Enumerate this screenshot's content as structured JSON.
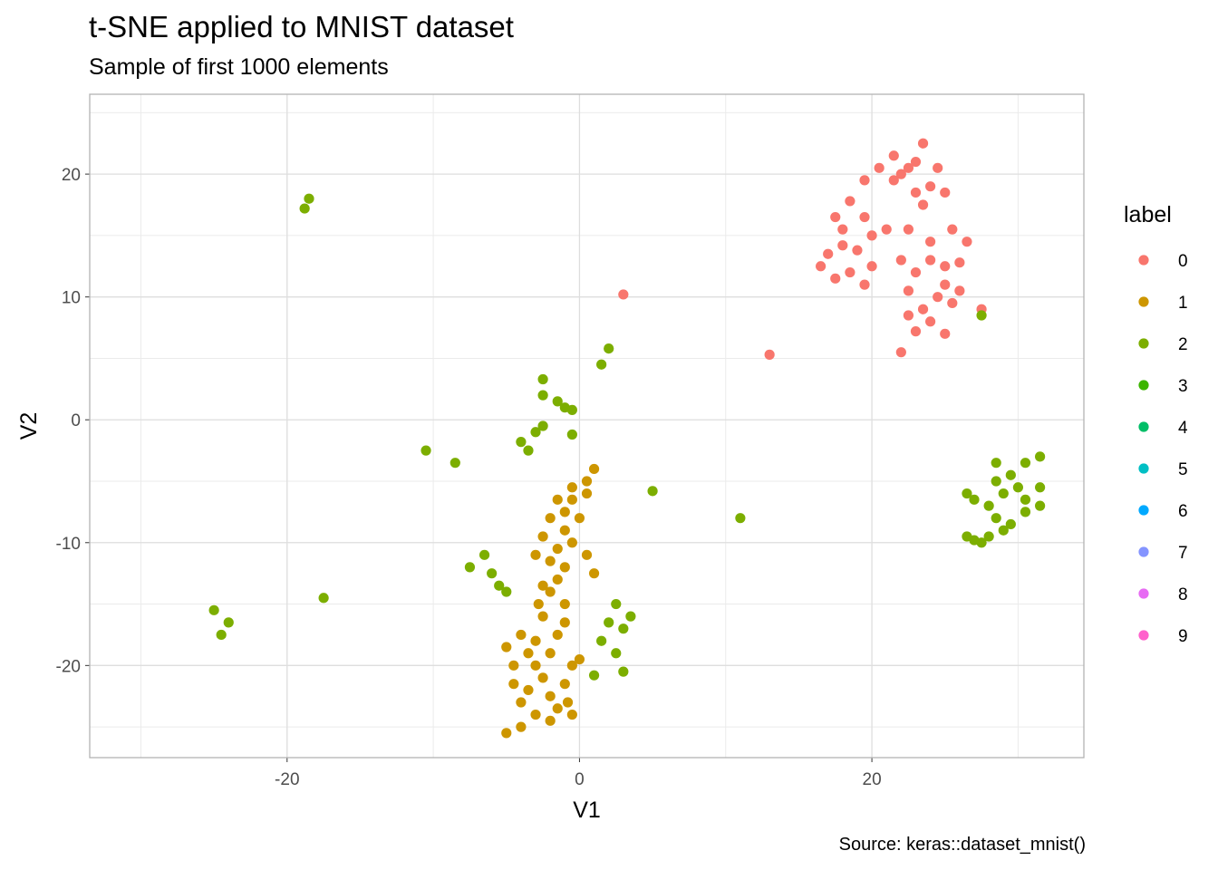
{
  "title": "t-SNE applied to MNIST dataset",
  "subtitle": "Sample of first 1000 elements",
  "caption": "Source: keras::dataset_mnist()",
  "chart_data": {
    "type": "scatter",
    "xlabel": "V1",
    "ylabel": "V2",
    "xlim": [
      -33.5,
      34.5
    ],
    "ylim": [
      -27.5,
      26.5
    ],
    "x_ticks": [
      -20,
      0,
      20
    ],
    "y_ticks": [
      -20,
      -10,
      0,
      10,
      20
    ],
    "x_tick_labels": [
      "-20",
      "0",
      "20"
    ],
    "y_tick_labels": [
      "-20",
      "-10",
      "0",
      "10",
      "20"
    ],
    "grid": true,
    "legend": {
      "title": "label",
      "position": "right"
    },
    "series": [
      {
        "name": "0",
        "color": "#F8766D",
        "points": [
          [
            23.5,
            22.5
          ],
          [
            23.0,
            21.0
          ],
          [
            22.5,
            20.5
          ],
          [
            21.5,
            19.5
          ],
          [
            24.0,
            19.0
          ],
          [
            23.0,
            18.5
          ],
          [
            22.0,
            20.0
          ],
          [
            24.5,
            20.5
          ],
          [
            20.5,
            20.5
          ],
          [
            25.0,
            18.5
          ],
          [
            23.5,
            17.5
          ],
          [
            18.5,
            17.8
          ],
          [
            19.5,
            16.5
          ],
          [
            17.5,
            16.5
          ],
          [
            18.0,
            15.5
          ],
          [
            20.0,
            15.0
          ],
          [
            21.0,
            15.5
          ],
          [
            22.5,
            15.5
          ],
          [
            24.0,
            14.5
          ],
          [
            25.5,
            15.5
          ],
          [
            26.5,
            14.5
          ],
          [
            24.0,
            13.0
          ],
          [
            25.0,
            12.5
          ],
          [
            26.0,
            12.8
          ],
          [
            23.0,
            12.0
          ],
          [
            22.0,
            13.0
          ],
          [
            19.0,
            13.8
          ],
          [
            18.0,
            14.2
          ],
          [
            17.0,
            13.5
          ],
          [
            16.5,
            12.5
          ],
          [
            17.5,
            11.5
          ],
          [
            18.5,
            12.0
          ],
          [
            19.5,
            11.0
          ],
          [
            20.0,
            12.5
          ],
          [
            25.0,
            11.0
          ],
          [
            26.0,
            10.5
          ],
          [
            24.5,
            10.0
          ],
          [
            23.5,
            9.0
          ],
          [
            22.5,
            8.5
          ],
          [
            24.0,
            8.0
          ],
          [
            25.0,
            7.0
          ],
          [
            23.0,
            7.2
          ],
          [
            22.0,
            5.5
          ],
          [
            22.5,
            10.5
          ],
          [
            25.5,
            9.5
          ],
          [
            27.5,
            9.0
          ],
          [
            13.0,
            5.3
          ],
          [
            3.0,
            10.2
          ],
          [
            19.5,
            19.5
          ],
          [
            21.5,
            21.5
          ]
        ]
      },
      {
        "name": "1",
        "color": "#CD9600",
        "points": [
          [
            1.0,
            -4.0
          ],
          [
            0.5,
            -5.0
          ],
          [
            -0.5,
            -5.5
          ],
          [
            -1.5,
            -6.5
          ],
          [
            -1.0,
            -7.5
          ],
          [
            -2.0,
            -8.0
          ],
          [
            -1.0,
            -9.0
          ],
          [
            -0.5,
            -10.0
          ],
          [
            -1.5,
            -10.5
          ],
          [
            -2.5,
            -9.5
          ],
          [
            -2.0,
            -11.5
          ],
          [
            -1.0,
            -12.0
          ],
          [
            -1.5,
            -13.0
          ],
          [
            -2.0,
            -14.0
          ],
          [
            -1.0,
            -15.0
          ],
          [
            -2.5,
            -16.0
          ],
          [
            -1.5,
            -17.5
          ],
          [
            -3.0,
            -18.0
          ],
          [
            -2.0,
            -19.0
          ],
          [
            -3.0,
            -20.0
          ],
          [
            -2.5,
            -21.0
          ],
          [
            -3.5,
            -22.0
          ],
          [
            -2.0,
            -22.5
          ],
          [
            -4.0,
            -23.0
          ],
          [
            -3.0,
            -24.0
          ],
          [
            -4.0,
            -25.0
          ],
          [
            -1.0,
            -21.5
          ],
          [
            -0.5,
            -20.0
          ],
          [
            0.0,
            -19.5
          ],
          [
            -1.5,
            -23.5
          ],
          [
            -0.5,
            -24.0
          ],
          [
            -5.0,
            -25.5
          ],
          [
            -4.5,
            -20.0
          ],
          [
            -5.0,
            -18.5
          ],
          [
            -4.0,
            -17.5
          ],
          [
            0.0,
            -8.0
          ],
          [
            0.5,
            -11.0
          ],
          [
            1.0,
            -12.5
          ],
          [
            -0.5,
            -6.5
          ],
          [
            0.5,
            -6.0
          ],
          [
            -3.0,
            -11.0
          ],
          [
            -2.5,
            -13.5
          ],
          [
            -1.0,
            -16.5
          ],
          [
            -2.0,
            -24.5
          ],
          [
            -4.5,
            -21.5
          ],
          [
            -3.5,
            -19.0
          ],
          [
            -0.8,
            -23.0
          ],
          [
            -2.8,
            -15.0
          ]
        ]
      },
      {
        "name": "2",
        "color": "#7CAE00",
        "points": [
          [
            -18.5,
            18.0
          ],
          [
            -18.8,
            17.2
          ],
          [
            -2.5,
            3.3
          ],
          [
            -2.5,
            2.0
          ],
          [
            -1.5,
            1.5
          ],
          [
            -1.0,
            1.0
          ],
          [
            -0.5,
            0.8
          ],
          [
            -2.5,
            -0.5
          ],
          [
            -3.0,
            -1.0
          ],
          [
            -0.5,
            -1.2
          ],
          [
            -4.0,
            -1.8
          ],
          [
            -3.5,
            -2.5
          ],
          [
            -10.5,
            -2.5
          ],
          [
            -8.5,
            -3.5
          ],
          [
            5.0,
            -5.8
          ],
          [
            -6.5,
            -11.0
          ],
          [
            -6.0,
            -12.5
          ],
          [
            -5.5,
            -13.5
          ],
          [
            -7.5,
            -12.0
          ],
          [
            -5.0,
            -14.0
          ],
          [
            2.5,
            -15.0
          ],
          [
            3.0,
            -17.0
          ],
          [
            2.0,
            -16.5
          ],
          [
            3.5,
            -16.0
          ],
          [
            1.5,
            -18.0
          ],
          [
            2.5,
            -19.0
          ],
          [
            3.0,
            -20.5
          ],
          [
            1.0,
            -20.8
          ],
          [
            11.0,
            -8.0
          ],
          [
            -17.5,
            -14.5
          ],
          [
            -24.0,
            -16.5
          ],
          [
            -24.5,
            -17.5
          ],
          [
            -25.0,
            -15.5
          ],
          [
            28.5,
            -3.5
          ],
          [
            29.5,
            -4.5
          ],
          [
            30.5,
            -3.5
          ],
          [
            31.5,
            -3.0
          ],
          [
            30.0,
            -5.5
          ],
          [
            29.0,
            -6.0
          ],
          [
            28.0,
            -7.0
          ],
          [
            27.0,
            -6.5
          ],
          [
            26.5,
            -6.0
          ],
          [
            28.5,
            -8.0
          ],
          [
            29.5,
            -8.5
          ],
          [
            30.5,
            -7.5
          ],
          [
            31.5,
            -7.0
          ],
          [
            28.0,
            -9.5
          ],
          [
            27.0,
            -9.8
          ],
          [
            26.5,
            -9.5
          ],
          [
            27.5,
            -10.0
          ],
          [
            29.0,
            -9.0
          ],
          [
            31.5,
            -5.5
          ],
          [
            30.5,
            -6.5
          ],
          [
            28.5,
            -5.0
          ],
          [
            2.0,
            5.8
          ],
          [
            1.5,
            4.5
          ],
          [
            27.5,
            8.5
          ]
        ]
      },
      {
        "name": "3",
        "color": "#00A9FF",
        "hidden_color": false,
        "points": []
      },
      {
        "name": "3",
        "color": "#00BE67",
        "points": []
      }
    ]
  }
}
